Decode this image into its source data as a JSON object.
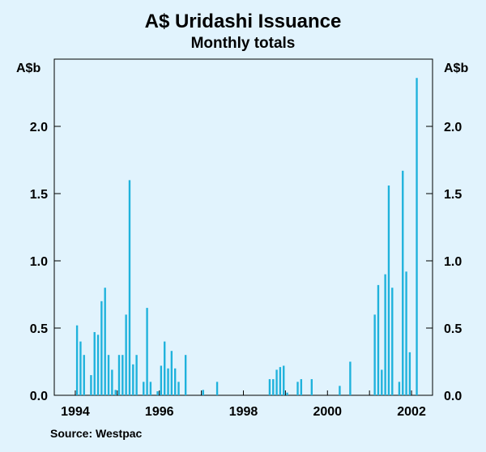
{
  "chart_data": {
    "type": "bar",
    "title": "A$ Uridashi Issuance",
    "subtitle": "Monthly totals",
    "ylabel_left": "A$b",
    "ylabel_right": "A$b",
    "source": "Source: Westpac",
    "ylim": [
      0,
      2.4
    ],
    "xlim": [
      1993.5,
      2002.5
    ],
    "y_ticks": [
      "0.0",
      "0.5",
      "1.0",
      "1.5",
      "2.0"
    ],
    "x_ticks": [
      "1994",
      "1996",
      "1998",
      "2000",
      "2002"
    ],
    "bar_color": "#1fb2dc",
    "grid": false,
    "series": [
      {
        "x": [
          "1994-01",
          "1994-02",
          "1994-03",
          "1994-05",
          "1994-06",
          "1994-07",
          "1994-08",
          "1994-09",
          "1994-10",
          "1994-11",
          "1994-12",
          "1995-01",
          "1995-02",
          "1995-03",
          "1995-04",
          "1995-05",
          "1995-06",
          "1995-08",
          "1995-09",
          "1995-10",
          "1995-12",
          "1996-01",
          "1996-02",
          "1996-03",
          "1996-04",
          "1996-05",
          "1996-06",
          "1996-08",
          "1997-01",
          "1997-05",
          "1998-08",
          "1998-09",
          "1998-10",
          "1998-11",
          "1998-12",
          "1999-01",
          "1999-04",
          "1999-05",
          "1999-08",
          "2000-04",
          "2000-07",
          "2001-02",
          "2001-03",
          "2001-04",
          "2001-05",
          "2001-06",
          "2001-07",
          "2001-09",
          "2001-10",
          "2001-11",
          "2001-12",
          "2002-02"
        ],
        "values": [
          0.52,
          0.4,
          0.3,
          0.15,
          0.47,
          0.45,
          0.7,
          0.8,
          0.3,
          0.19,
          0.04,
          0.3,
          0.3,
          0.6,
          1.6,
          0.23,
          0.3,
          0.1,
          0.65,
          0.1,
          0.03,
          0.22,
          0.4,
          0.2,
          0.33,
          0.2,
          0.1,
          0.3,
          0.04,
          0.1,
          0.12,
          0.12,
          0.19,
          0.21,
          0.22,
          0.02,
          0.1,
          0.12,
          0.12,
          0.07,
          0.25,
          0.6,
          0.82,
          0.19,
          0.9,
          1.56,
          0.8,
          0.1,
          1.67,
          0.92,
          0.32,
          2.36
        ]
      }
    ]
  }
}
